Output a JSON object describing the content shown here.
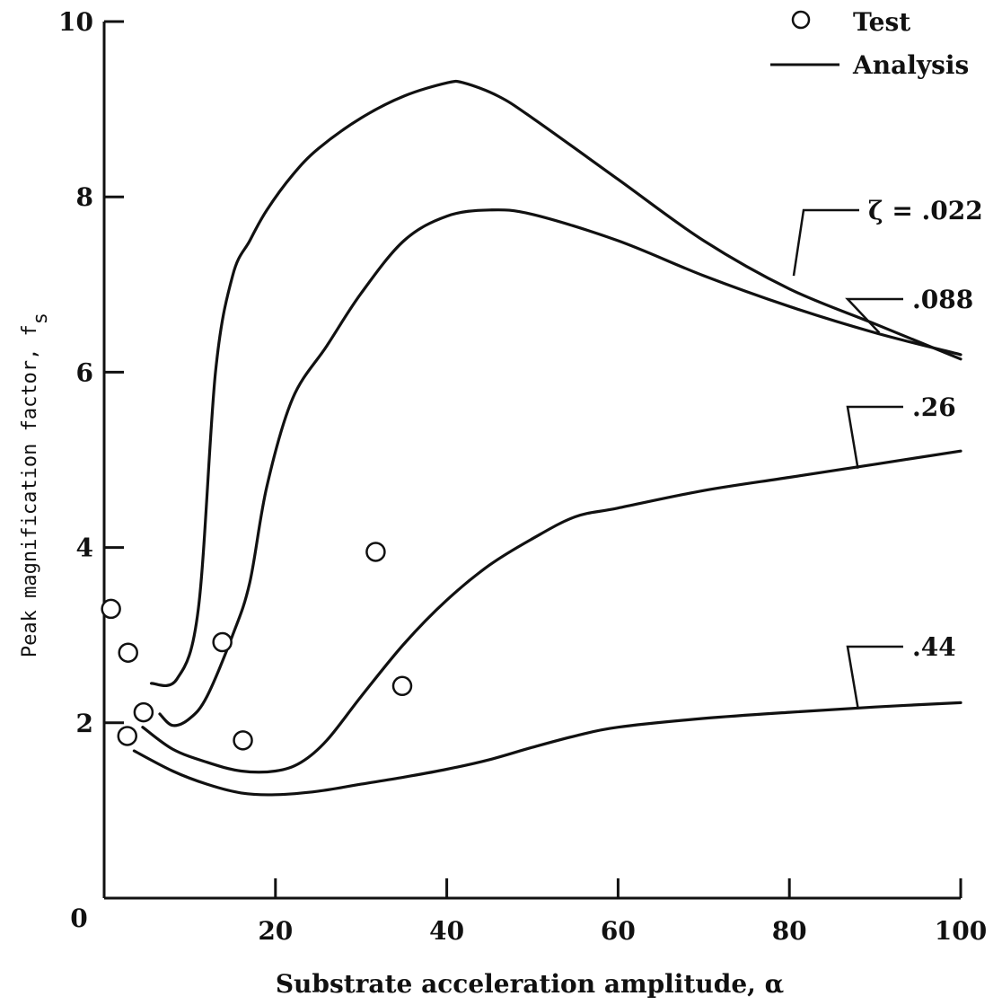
{
  "chart_data": {
    "type": "line",
    "xlabel": "Substrate acceleration amplitude, α",
    "ylabel": "Peak magnification factor, f",
    "ylabel_subscript": "s",
    "xlim": [
      0,
      100
    ],
    "ylim": [
      0,
      10
    ],
    "x_ticks": [
      "0",
      "20",
      "40",
      "60",
      "80",
      "100"
    ],
    "y_ticks": [
      "2",
      "4",
      "6",
      "8",
      "10"
    ],
    "legend": {
      "marker_label": "Test",
      "line_label": "Analysis",
      "placement": "top-right"
    },
    "test_points": [
      {
        "x": 0.8,
        "y": 3.3
      },
      {
        "x": 2.8,
        "y": 2.8
      },
      {
        "x": 2.7,
        "y": 1.85
      },
      {
        "x": 4.6,
        "y": 2.12
      },
      {
        "x": 13.8,
        "y": 2.92
      },
      {
        "x": 16.2,
        "y": 1.8
      },
      {
        "x": 31.7,
        "y": 3.95
      },
      {
        "x": 34.8,
        "y": 2.42
      }
    ],
    "series": [
      {
        "name": "ζ = .022",
        "values": [
          [
            5.5,
            2.45
          ],
          [
            8.5,
            2.5
          ],
          [
            11,
            3.3
          ],
          [
            13,
            6.0
          ],
          [
            15,
            7.1
          ],
          [
            17,
            7.5
          ],
          [
            19,
            7.85
          ],
          [
            22,
            8.25
          ],
          [
            25,
            8.55
          ],
          [
            30,
            8.9
          ],
          [
            35,
            9.15
          ],
          [
            40,
            9.3
          ],
          [
            42,
            9.3
          ],
          [
            46,
            9.15
          ],
          [
            50,
            8.9
          ],
          [
            60,
            8.2
          ],
          [
            70,
            7.5
          ],
          [
            80,
            6.95
          ],
          [
            90,
            6.55
          ],
          [
            100,
            6.15
          ]
        ]
      },
      {
        "name": ".088",
        "values": [
          [
            6.5,
            2.1
          ],
          [
            8,
            1.97
          ],
          [
            10,
            2.05
          ],
          [
            12,
            2.3
          ],
          [
            15,
            3.0
          ],
          [
            17,
            3.6
          ],
          [
            19,
            4.7
          ],
          [
            22,
            5.7
          ],
          [
            26,
            6.3
          ],
          [
            30,
            6.9
          ],
          [
            35,
            7.5
          ],
          [
            40,
            7.78
          ],
          [
            45,
            7.85
          ],
          [
            50,
            7.8
          ],
          [
            60,
            7.5
          ],
          [
            70,
            7.1
          ],
          [
            80,
            6.75
          ],
          [
            90,
            6.45
          ],
          [
            100,
            6.2
          ]
        ]
      },
      {
        "name": ".26",
        "values": [
          [
            4.5,
            1.95
          ],
          [
            8,
            1.7
          ],
          [
            12,
            1.55
          ],
          [
            16,
            1.45
          ],
          [
            20,
            1.45
          ],
          [
            23,
            1.55
          ],
          [
            26,
            1.8
          ],
          [
            30,
            2.3
          ],
          [
            35,
            2.9
          ],
          [
            40,
            3.4
          ],
          [
            45,
            3.8
          ],
          [
            50,
            4.1
          ],
          [
            55,
            4.35
          ],
          [
            60,
            4.45
          ],
          [
            70,
            4.65
          ],
          [
            80,
            4.8
          ],
          [
            90,
            4.95
          ],
          [
            100,
            5.1
          ]
        ]
      },
      {
        "name": ".44",
        "values": [
          [
            3.5,
            1.68
          ],
          [
            8,
            1.45
          ],
          [
            12,
            1.3
          ],
          [
            16,
            1.2
          ],
          [
            20,
            1.18
          ],
          [
            25,
            1.22
          ],
          [
            30,
            1.3
          ],
          [
            35,
            1.38
          ],
          [
            40,
            1.47
          ],
          [
            45,
            1.58
          ],
          [
            50,
            1.72
          ],
          [
            55,
            1.85
          ],
          [
            60,
            1.95
          ],
          [
            70,
            2.05
          ],
          [
            80,
            2.12
          ],
          [
            90,
            2.18
          ],
          [
            100,
            2.23
          ]
        ]
      }
    ],
    "curve_labels": [
      {
        "text": "ζ = .022",
        "series": 0
      },
      {
        "text": ".088",
        "series": 1
      },
      {
        "text": ".26",
        "series": 2
      },
      {
        "text": ".44",
        "series": 3
      }
    ],
    "grid": false
  }
}
